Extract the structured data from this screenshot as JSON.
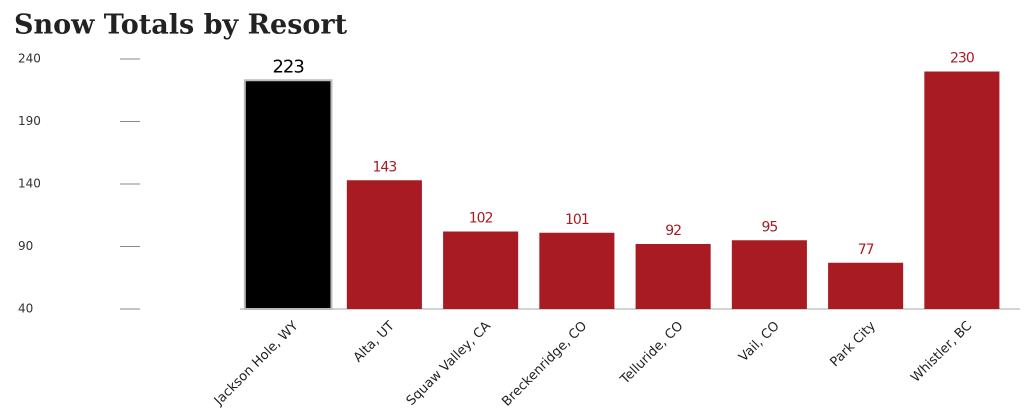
{
  "chart_data": {
    "type": "bar",
    "title": "Snow Totals by Resort",
    "categories": [
      "Jackson Hole, WY",
      "Alta, UT",
      "Squaw Valley, CA",
      "Breckenridge, CO",
      "Telluride, CO",
      "Vail, CO",
      "Park City",
      "Whistler, BC"
    ],
    "values": [
      223,
      143,
      102,
      101,
      92,
      95,
      77,
      230
    ],
    "colors": [
      "#000000",
      "#a81b23",
      "#a81b23",
      "#a81b23",
      "#a81b23",
      "#a81b23",
      "#a81b23",
      "#a81b23"
    ],
    "ylim": [
      40,
      240
    ],
    "yticks": [
      40,
      90,
      140,
      190,
      240
    ]
  }
}
